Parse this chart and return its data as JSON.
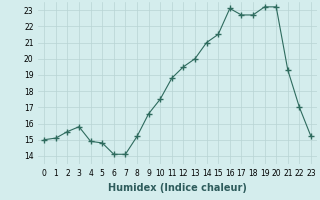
{
  "x": [
    0,
    1,
    2,
    3,
    4,
    5,
    6,
    7,
    8,
    9,
    10,
    11,
    12,
    13,
    14,
    15,
    16,
    17,
    18,
    19,
    20,
    21,
    22,
    23
  ],
  "y": [
    15.0,
    15.1,
    15.5,
    15.8,
    14.9,
    14.8,
    14.1,
    14.1,
    15.2,
    16.6,
    17.5,
    18.8,
    19.5,
    20.0,
    21.0,
    21.5,
    23.1,
    22.7,
    22.7,
    23.2,
    23.2,
    19.3,
    17.0,
    15.2
  ],
  "xlabel": "Humidex (Indice chaleur)",
  "xlim": [
    -0.5,
    23.5
  ],
  "ylim": [
    13.5,
    23.5
  ],
  "yticks": [
    14,
    15,
    16,
    17,
    18,
    19,
    20,
    21,
    22,
    23
  ],
  "xtick_labels": [
    "0",
    "1",
    "2",
    "3",
    "4",
    "5",
    "6",
    "7",
    "8",
    "9",
    "10",
    "11",
    "12",
    "13",
    "14",
    "15",
    "16",
    "17",
    "18",
    "19",
    "20",
    "21",
    "22",
    "23"
  ],
  "line_color": "#2e6b5e",
  "marker": "+",
  "marker_size": 4,
  "bg_color": "#d4eded",
  "grid_color": "#b8d4d4",
  "label_fontsize": 7,
  "tick_fontsize": 5.5
}
